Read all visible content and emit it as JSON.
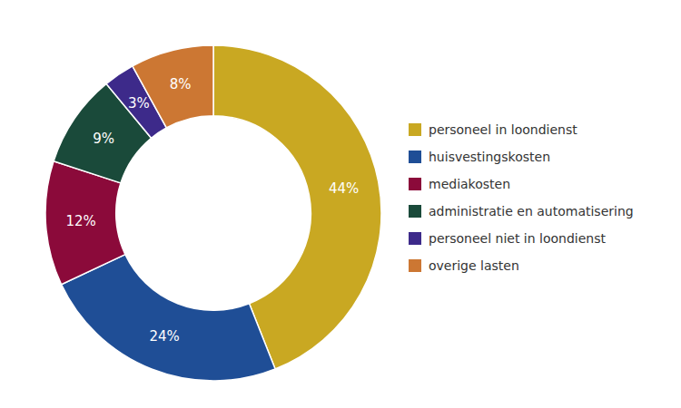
{
  "chart_data": {
    "type": "donut",
    "categories": [
      "personeel in loondienst",
      "huisvestingskosten",
      "mediakosten",
      "administratie en automatisering",
      "personeel niet in loondienst",
      "overige lasten"
    ],
    "values": [
      44,
      24,
      12,
      9,
      3,
      8
    ],
    "value_labels": [
      "44%",
      "24%",
      "12%",
      "9%",
      "3%",
      "8%"
    ],
    "data_labels": true,
    "colors": [
      "#C9A822",
      "#1F4E96",
      "#8B0A3A",
      "#1A4A3A",
      "#3D2A8A",
      "#CC7733"
    ],
    "legend": "right"
  }
}
